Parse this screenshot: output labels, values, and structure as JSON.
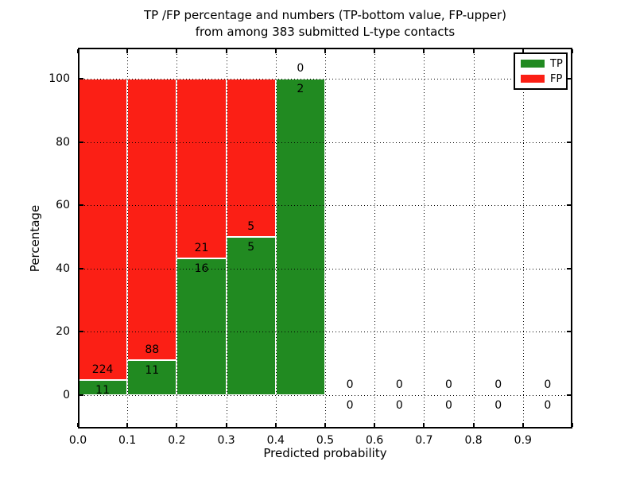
{
  "title": {
    "line1": "TP /FP percentage and numbers (TP-bottom value, FP-upper)",
    "line2": "from among 383 submitted L-type contacts"
  },
  "axes": {
    "xlabel": "Predicted probability",
    "ylabel": "Percentage"
  },
  "legend": {
    "items": [
      {
        "label": "TP",
        "color": "#218a21"
      },
      {
        "label": "FP",
        "color": "#fb1f15"
      }
    ],
    "position": "upper right"
  },
  "chart_data": {
    "type": "bar",
    "stacked": true,
    "normalized_to_percent": true,
    "title": "TP /FP percentage and numbers (TP-bottom value, FP-upper) from among 383 submitted L-type contacts",
    "xlabel": "Predicted probability",
    "ylabel": "Percentage",
    "total_submitted_contacts": 383,
    "bin_edges": [
      0.0,
      0.1,
      0.2,
      0.3,
      0.4,
      0.5,
      0.6,
      0.7,
      0.8,
      0.9,
      1.0
    ],
    "series": [
      {
        "name": "TP",
        "color": "#218a21",
        "counts": [
          11,
          11,
          16,
          5,
          2,
          0,
          0,
          0,
          0,
          0
        ]
      },
      {
        "name": "FP",
        "color": "#fb1f15",
        "counts": [
          224,
          88,
          21,
          5,
          0,
          0,
          0,
          0,
          0,
          0
        ]
      }
    ],
    "tp_percent_per_bin": [
      4.68,
      11.11,
      43.24,
      50.0,
      100.0,
      0,
      0,
      0,
      0,
      0
    ],
    "xticks": [
      "0.0",
      "0.1",
      "0.2",
      "0.3",
      "0.4",
      "0.5",
      "0.6",
      "0.7",
      "0.8",
      "0.9"
    ],
    "yticks": [
      0,
      20,
      40,
      60,
      80,
      100
    ],
    "xlim": [
      0.0,
      1.0
    ],
    "ylim": [
      -11,
      110
    ],
    "grid": true,
    "grid_style": "dotted",
    "legend_position": "upper right"
  }
}
